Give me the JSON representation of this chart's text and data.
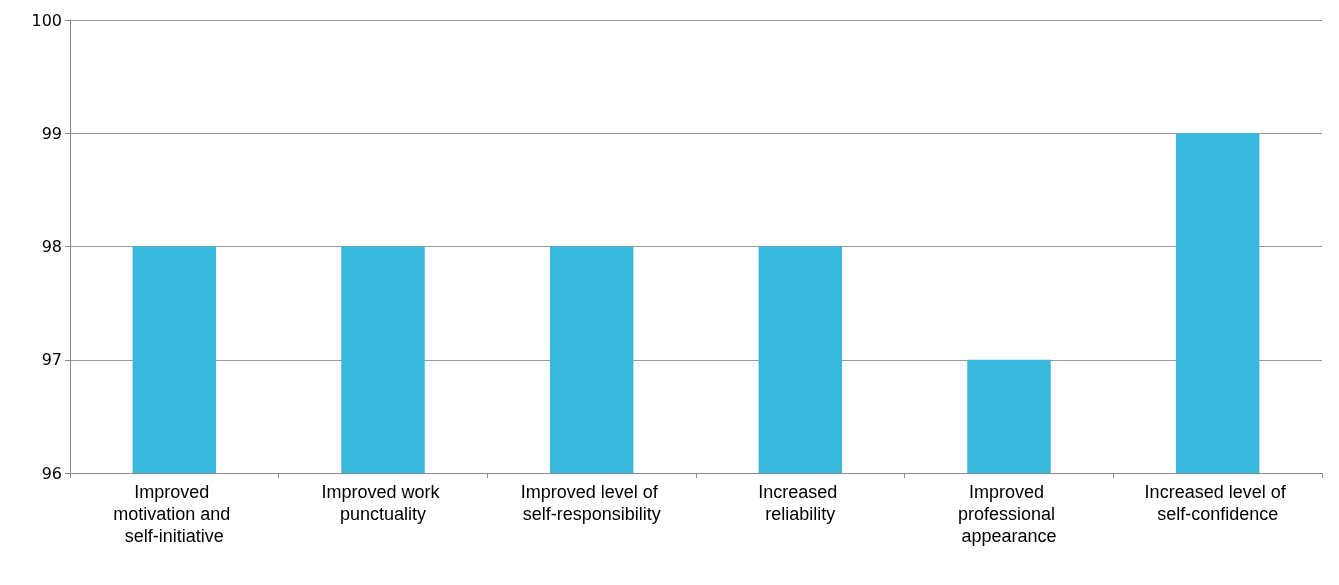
{
  "chart_data": {
    "type": "bar",
    "categories": [
      "Improved motivation and self-initiative",
      "Improved work punctuality",
      "Improved level of self-responsibility",
      "Increased reliability",
      "Improved professional appearance",
      "Increased level of self-confidence"
    ],
    "values": [
      98,
      98,
      98,
      98,
      97,
      99
    ],
    "color": "#38b8dc",
    "ylim": [
      96,
      100
    ],
    "yticks": [
      96,
      97,
      98,
      99,
      100
    ],
    "grid": "y"
  }
}
